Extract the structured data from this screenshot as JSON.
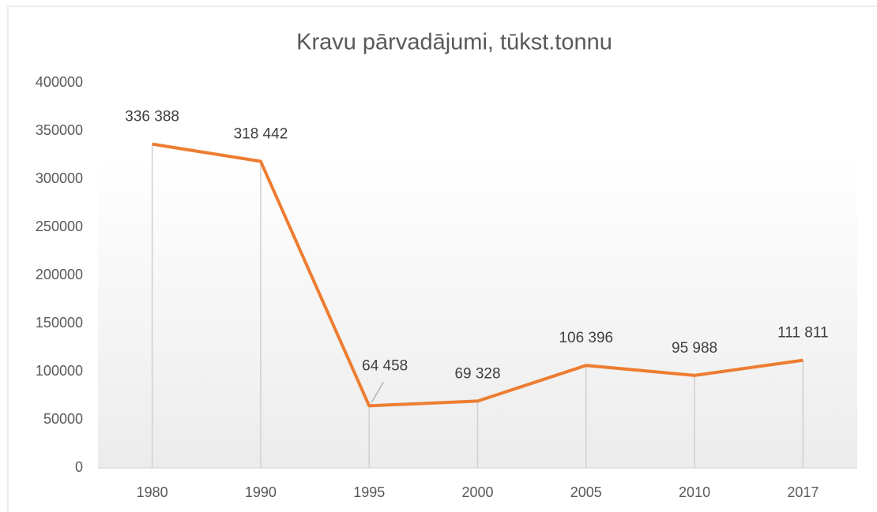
{
  "chart_data": {
    "type": "line",
    "title": "Kravu pārvadājumi, tūkst.tonnu",
    "categories": [
      "1980",
      "1990",
      "1995",
      "2000",
      "2005",
      "2010",
      "2017"
    ],
    "values": [
      336388,
      318442,
      64458,
      69328,
      106396,
      95988,
      111811
    ],
    "value_labels": [
      "336 388",
      "318 442",
      "64 458",
      "69 328",
      "106 396",
      "95 988",
      "111 811"
    ],
    "color": "#ed7d31",
    "ylim": [
      0,
      400000
    ],
    "yticks": [
      0,
      50000,
      100000,
      150000,
      200000,
      250000,
      300000,
      350000,
      400000
    ],
    "grid": false,
    "drop_lines": true
  }
}
